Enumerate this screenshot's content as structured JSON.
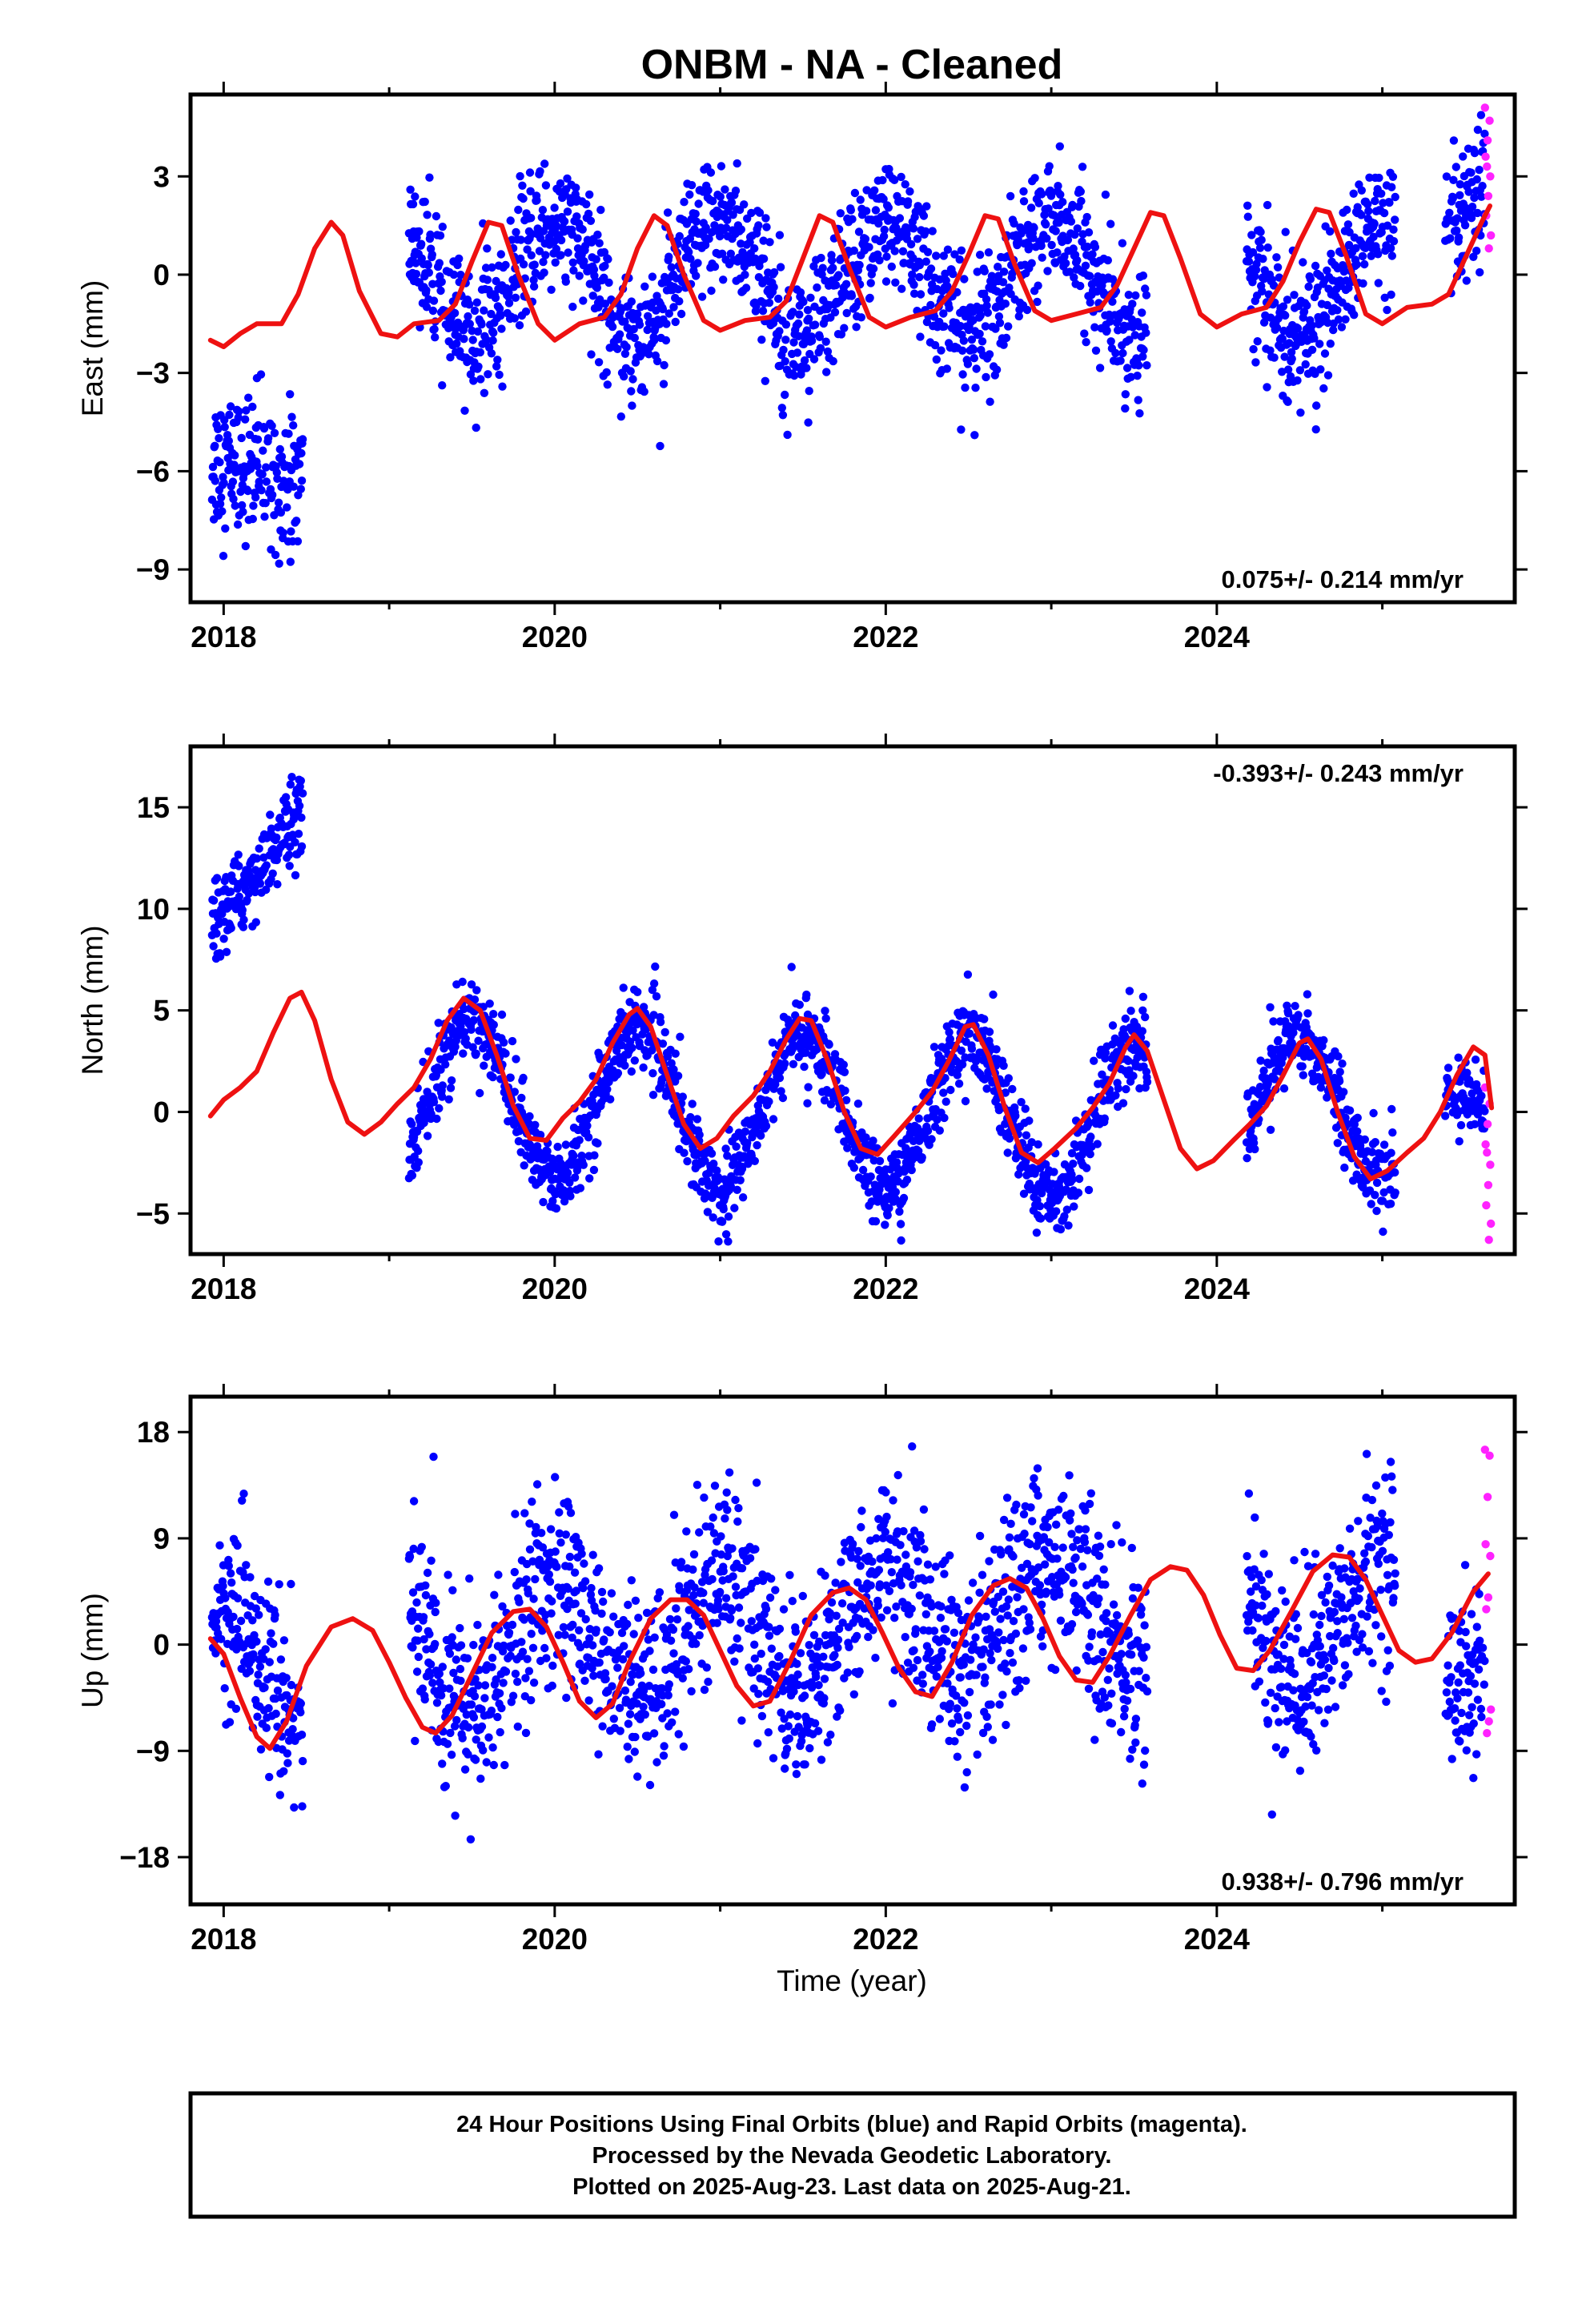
{
  "chart_data": {
    "type": "scatter",
    "title": "ONBM  - NA - Cleaned",
    "xlabel": "Time (year)",
    "xlim": [
      2017.8,
      2025.8
    ],
    "xticks": [
      "2018",
      "2020",
      "2022",
      "2024"
    ],
    "colors": {
      "final": "#0000ff",
      "rapid": "#ff22ff",
      "model": "#ee1111"
    },
    "panels": [
      {
        "ylabel": "East (mm)",
        "ylim": [
          -10,
          5.5
        ],
        "yticks": [
          "3",
          "0",
          "−3",
          "−6",
          "−9"
        ],
        "rate_text": "0.075+/- 0.214 mm/yr",
        "rate_position": "bottom-right",
        "segments": [
          {
            "start": 2017.93,
            "end": 2018.48,
            "level": -6.0,
            "trend": 0.0,
            "amp": 0.3,
            "noise": 1.1
          },
          {
            "start": 2019.12,
            "end": 2023.58,
            "level": -0.1,
            "trend": 0.0,
            "amp": 1.7,
            "noise": 1.0
          },
          {
            "start": 2024.18,
            "end": 2025.08,
            "level": -0.2,
            "trend": 0.0,
            "amp": 1.7,
            "noise": 1.0
          },
          {
            "start": 2025.38,
            "end": 2025.62,
            "level": 1.2,
            "trend": 6.0,
            "amp": 0.3,
            "noise": 1.0
          }
        ],
        "rapid": {
          "start": 2025.62,
          "end": 2025.66,
          "values": [
            5.1,
            4.7,
            4.1,
            3.6,
            3.0,
            2.4,
            1.8,
            1.2,
            0.8,
            3.3
          ]
        },
        "model": [
          [
            2017.92,
            -2.0
          ],
          [
            2018.0,
            -2.2
          ],
          [
            2018.1,
            -1.8
          ],
          [
            2018.2,
            -1.5
          ],
          [
            2018.35,
            -1.5
          ],
          [
            2018.45,
            -0.6
          ],
          [
            2018.55,
            0.8
          ],
          [
            2018.65,
            1.6
          ],
          [
            2018.72,
            1.2
          ],
          [
            2018.82,
            -0.5
          ],
          [
            2018.95,
            -1.8
          ],
          [
            2019.05,
            -1.9
          ],
          [
            2019.15,
            -1.5
          ],
          [
            2019.3,
            -1.4
          ],
          [
            2019.4,
            -0.9
          ],
          [
            2019.5,
            0.4
          ],
          [
            2019.6,
            1.6
          ],
          [
            2019.68,
            1.5
          ],
          [
            2019.78,
            0.0
          ],
          [
            2019.9,
            -1.5
          ],
          [
            2020.0,
            -2.0
          ],
          [
            2020.15,
            -1.5
          ],
          [
            2020.3,
            -1.3
          ],
          [
            2020.4,
            -0.6
          ],
          [
            2020.5,
            0.8
          ],
          [
            2020.6,
            1.8
          ],
          [
            2020.68,
            1.5
          ],
          [
            2020.78,
            0.0
          ],
          [
            2020.9,
            -1.4
          ],
          [
            2021.0,
            -1.7
          ],
          [
            2021.15,
            -1.4
          ],
          [
            2021.3,
            -1.3
          ],
          [
            2021.4,
            -0.8
          ],
          [
            2021.5,
            0.5
          ],
          [
            2021.6,
            1.8
          ],
          [
            2021.68,
            1.6
          ],
          [
            2021.78,
            0.2
          ],
          [
            2021.9,
            -1.3
          ],
          [
            2022.0,
            -1.6
          ],
          [
            2022.15,
            -1.3
          ],
          [
            2022.3,
            -1.1
          ],
          [
            2022.4,
            -0.5
          ],
          [
            2022.5,
            0.6
          ],
          [
            2022.6,
            1.8
          ],
          [
            2022.68,
            1.7
          ],
          [
            2022.78,
            0.3
          ],
          [
            2022.9,
            -1.1
          ],
          [
            2023.0,
            -1.4
          ],
          [
            2023.15,
            -1.2
          ],
          [
            2023.3,
            -1.0
          ],
          [
            2023.4,
            -0.3
          ],
          [
            2023.5,
            0.8
          ],
          [
            2023.6,
            1.9
          ],
          [
            2023.68,
            1.8
          ],
          [
            2023.78,
            0.5
          ],
          [
            2023.9,
            -1.2
          ],
          [
            2024.0,
            -1.6
          ],
          [
            2024.15,
            -1.2
          ],
          [
            2024.3,
            -1.0
          ],
          [
            2024.4,
            -0.2
          ],
          [
            2024.5,
            1.0
          ],
          [
            2024.6,
            2.0
          ],
          [
            2024.68,
            1.9
          ],
          [
            2024.78,
            0.6
          ],
          [
            2024.9,
            -1.2
          ],
          [
            2025.0,
            -1.5
          ],
          [
            2025.15,
            -1.0
          ],
          [
            2025.3,
            -0.9
          ],
          [
            2025.4,
            -0.6
          ],
          [
            2025.5,
            0.5
          ],
          [
            2025.6,
            1.6
          ],
          [
            2025.65,
            2.1
          ]
        ]
      },
      {
        "ylabel": "North (mm)",
        "ylim": [
          -7,
          18
        ],
        "yticks": [
          "15",
          "10",
          "5",
          "0",
          "−5"
        ],
        "rate_text": "-0.393+/- 0.243 mm/yr",
        "rate_position": "top-right",
        "segments": [
          {
            "start": 2017.93,
            "end": 2018.48,
            "level": 9.5,
            "trend": 9.0,
            "amp": 0.3,
            "noise": 1.0
          },
          {
            "start": 2019.12,
            "end": 2023.58,
            "level": 0.8,
            "trend": -0.3,
            "amp": 3.8,
            "noise": 1.0
          },
          {
            "start": 2024.18,
            "end": 2025.08,
            "level": 0.4,
            "trend": -0.3,
            "amp": 3.4,
            "noise": 1.0
          },
          {
            "start": 2025.38,
            "end": 2025.62,
            "level": 0.3,
            "trend": 0.0,
            "amp": 0.5,
            "noise": 0.8
          }
        ],
        "rapid": {
          "start": 2025.62,
          "end": 2025.66,
          "values": [
            1.2,
            0.4,
            -0.6,
            -1.6,
            -2.6,
            -3.6,
            -4.6,
            -5.5,
            -6.3,
            -2.0
          ]
        },
        "model": [
          [
            2017.92,
            -0.2
          ],
          [
            2018.0,
            0.6
          ],
          [
            2018.1,
            1.2
          ],
          [
            2018.2,
            2.0
          ],
          [
            2018.3,
            3.9
          ],
          [
            2018.4,
            5.6
          ],
          [
            2018.47,
            5.9
          ],
          [
            2018.55,
            4.5
          ],
          [
            2018.65,
            1.6
          ],
          [
            2018.75,
            -0.5
          ],
          [
            2018.85,
            -1.1
          ],
          [
            2018.95,
            -0.5
          ],
          [
            2019.05,
            0.4
          ],
          [
            2019.15,
            1.2
          ],
          [
            2019.25,
            2.6
          ],
          [
            2019.35,
            4.5
          ],
          [
            2019.45,
            5.6
          ],
          [
            2019.55,
            5.0
          ],
          [
            2019.65,
            2.8
          ],
          [
            2019.75,
            0.3
          ],
          [
            2019.85,
            -1.3
          ],
          [
            2019.95,
            -1.4
          ],
          [
            2020.05,
            -0.3
          ],
          [
            2020.15,
            0.5
          ],
          [
            2020.25,
            1.6
          ],
          [
            2020.35,
            3.4
          ],
          [
            2020.45,
            4.8
          ],
          [
            2020.5,
            5.1
          ],
          [
            2020.58,
            4.2
          ],
          [
            2020.68,
            1.8
          ],
          [
            2020.78,
            -0.6
          ],
          [
            2020.88,
            -1.8
          ],
          [
            2020.98,
            -1.3
          ],
          [
            2021.08,
            -0.2
          ],
          [
            2021.2,
            0.8
          ],
          [
            2021.3,
            2.0
          ],
          [
            2021.4,
            3.6
          ],
          [
            2021.48,
            4.6
          ],
          [
            2021.55,
            4.5
          ],
          [
            2021.65,
            2.5
          ],
          [
            2021.75,
            0.0
          ],
          [
            2021.85,
            -1.8
          ],
          [
            2021.95,
            -2.1
          ],
          [
            2022.05,
            -1.2
          ],
          [
            2022.18,
            0.0
          ],
          [
            2022.28,
            1.0
          ],
          [
            2022.38,
            2.5
          ],
          [
            2022.48,
            4.2
          ],
          [
            2022.53,
            4.3
          ],
          [
            2022.62,
            2.8
          ],
          [
            2022.72,
            0.2
          ],
          [
            2022.82,
            -2.0
          ],
          [
            2022.92,
            -2.5
          ],
          [
            2023.02,
            -1.8
          ],
          [
            2023.15,
            -0.8
          ],
          [
            2023.25,
            0.2
          ],
          [
            2023.35,
            1.4
          ],
          [
            2023.45,
            3.2
          ],
          [
            2023.5,
            3.8
          ],
          [
            2023.58,
            3.0
          ],
          [
            2023.68,
            0.6
          ],
          [
            2023.78,
            -1.8
          ],
          [
            2023.88,
            -2.8
          ],
          [
            2023.98,
            -2.4
          ],
          [
            2024.1,
            -1.4
          ],
          [
            2024.2,
            -0.6
          ],
          [
            2024.3,
            0.3
          ],
          [
            2024.4,
            1.8
          ],
          [
            2024.5,
            3.4
          ],
          [
            2024.55,
            3.6
          ],
          [
            2024.63,
            2.6
          ],
          [
            2024.73,
            0.0
          ],
          [
            2024.83,
            -2.2
          ],
          [
            2024.93,
            -3.3
          ],
          [
            2025.03,
            -2.9
          ],
          [
            2025.15,
            -2.0
          ],
          [
            2025.25,
            -1.3
          ],
          [
            2025.35,
            0.0
          ],
          [
            2025.45,
            1.8
          ],
          [
            2025.55,
            3.2
          ],
          [
            2025.62,
            2.8
          ],
          [
            2025.66,
            0.2
          ]
        ]
      },
      {
        "ylabel": "Up (mm)",
        "ylim": [
          -22,
          21
        ],
        "yticks": [
          "18",
          "9",
          "0",
          "−9",
          "−18"
        ],
        "rate_text": "0.938+/- 0.796 mm/yr",
        "rate_position": "bottom-right",
        "segments": [
          {
            "start": 2017.93,
            "end": 2018.48,
            "level": -2.0,
            "trend": 0.0,
            "amp": 5.0,
            "noise": 4.0
          },
          {
            "start": 2019.12,
            "end": 2023.58,
            "level": -0.8,
            "trend": 0.9,
            "amp": 5.0,
            "noise": 4.0
          },
          {
            "start": 2024.18,
            "end": 2025.08,
            "level": 1.5,
            "trend": 0.9,
            "amp": 5.0,
            "noise": 4.0
          },
          {
            "start": 2025.38,
            "end": 2025.62,
            "level": 0.0,
            "trend": 0.0,
            "amp": 3.0,
            "noise": 4.0
          }
        ],
        "rapid": {
          "start": 2025.62,
          "end": 2025.66,
          "values": [
            16.5,
            16.0,
            12.5,
            8.5,
            7.5,
            4.0,
            3.0,
            -5.5,
            -6.5,
            -7.5
          ]
        },
        "model": [
          [
            2017.92,
            0.5
          ],
          [
            2018.0,
            -0.8
          ],
          [
            2018.1,
            -4.5
          ],
          [
            2018.2,
            -7.8
          ],
          [
            2018.28,
            -8.8
          ],
          [
            2018.38,
            -6.5
          ],
          [
            2018.5,
            -1.8
          ],
          [
            2018.65,
            1.5
          ],
          [
            2018.78,
            2.2
          ],
          [
            2018.9,
            1.2
          ],
          [
            2019.0,
            -1.5
          ],
          [
            2019.1,
            -4.5
          ],
          [
            2019.2,
            -7.0
          ],
          [
            2019.28,
            -7.5
          ],
          [
            2019.38,
            -6.0
          ],
          [
            2019.5,
            -2.5
          ],
          [
            2019.62,
            1.0
          ],
          [
            2019.75,
            2.8
          ],
          [
            2019.85,
            3.0
          ],
          [
            2019.95,
            1.5
          ],
          [
            2020.05,
            -1.5
          ],
          [
            2020.15,
            -4.8
          ],
          [
            2020.25,
            -6.2
          ],
          [
            2020.35,
            -5.0
          ],
          [
            2020.45,
            -1.5
          ],
          [
            2020.58,
            2.2
          ],
          [
            2020.7,
            3.8
          ],
          [
            2020.8,
            3.8
          ],
          [
            2020.9,
            2.5
          ],
          [
            2021.0,
            -0.5
          ],
          [
            2021.1,
            -3.5
          ],
          [
            2021.2,
            -5.2
          ],
          [
            2021.3,
            -4.8
          ],
          [
            2021.42,
            -1.5
          ],
          [
            2021.55,
            2.5
          ],
          [
            2021.68,
            4.4
          ],
          [
            2021.78,
            4.8
          ],
          [
            2021.88,
            3.8
          ],
          [
            2021.98,
            1.0
          ],
          [
            2022.08,
            -2.0
          ],
          [
            2022.18,
            -4.0
          ],
          [
            2022.28,
            -4.4
          ],
          [
            2022.4,
            -1.5
          ],
          [
            2022.52,
            2.5
          ],
          [
            2022.65,
            5.0
          ],
          [
            2022.75,
            5.6
          ],
          [
            2022.85,
            4.8
          ],
          [
            2022.95,
            2.2
          ],
          [
            2023.05,
            -1.0
          ],
          [
            2023.15,
            -3.0
          ],
          [
            2023.25,
            -3.2
          ],
          [
            2023.35,
            -1.0
          ],
          [
            2023.48,
            2.5
          ],
          [
            2023.6,
            5.5
          ],
          [
            2023.72,
            6.6
          ],
          [
            2023.82,
            6.3
          ],
          [
            2023.92,
            4.2
          ],
          [
            2024.02,
            0.8
          ],
          [
            2024.12,
            -2.0
          ],
          [
            2024.22,
            -2.2
          ],
          [
            2024.32,
            -0.5
          ],
          [
            2024.45,
            2.8
          ],
          [
            2024.58,
            6.2
          ],
          [
            2024.7,
            7.6
          ],
          [
            2024.8,
            7.4
          ],
          [
            2024.9,
            5.5
          ],
          [
            2025.0,
            2.5
          ],
          [
            2025.1,
            -0.5
          ],
          [
            2025.2,
            -1.5
          ],
          [
            2025.3,
            -1.2
          ],
          [
            2025.42,
            1.0
          ],
          [
            2025.55,
            4.5
          ],
          [
            2025.64,
            6.0
          ]
        ]
      }
    ]
  },
  "caption": {
    "line1": "24 Hour Positions Using Final Orbits (blue) and Rapid Orbits (magenta).",
    "line2": "Processed by the Nevada Geodetic Laboratory.",
    "line3": "Plotted on 2025-Aug-23. Last data on 2025-Aug-21."
  }
}
